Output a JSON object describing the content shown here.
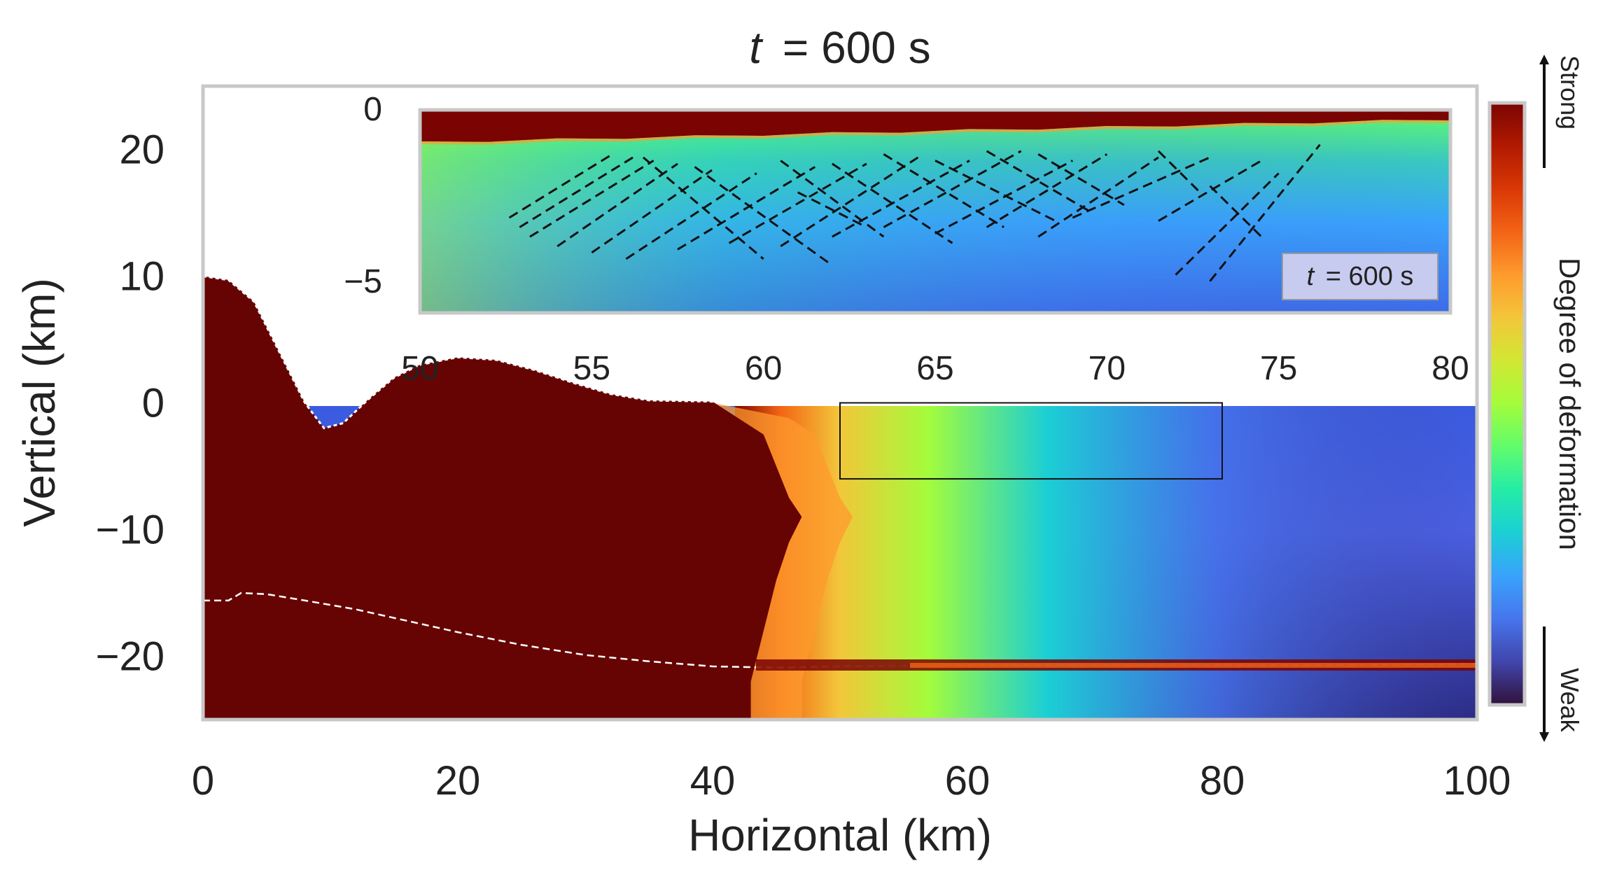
{
  "chart_data": [
    {
      "type": "heatmap",
      "title_prefix": "t",
      "title_value": "=  600 s",
      "xlabel": "Horizontal (km)",
      "ylabel": "Vertical (km)",
      "xlim": [
        0,
        100
      ],
      "ylim": [
        -25,
        25
      ],
      "x_ticks": [
        0,
        20,
        40,
        60,
        80,
        100
      ],
      "y_ticks": [
        20,
        10,
        0,
        -10,
        -20
      ],
      "grid": false,
      "surface_topography": [
        [
          0,
          10
        ],
        [
          2,
          9.7
        ],
        [
          4,
          8
        ],
        [
          6,
          4
        ],
        [
          8,
          0
        ],
        [
          9.5,
          -2
        ],
        [
          11,
          -1.6
        ],
        [
          13,
          0.3
        ],
        [
          15,
          2
        ],
        [
          17,
          3
        ],
        [
          20,
          3.6
        ],
        [
          23,
          3.4
        ],
        [
          26,
          2.6
        ],
        [
          29,
          1.6
        ],
        [
          32,
          0.7
        ],
        [
          35,
          0.2
        ],
        [
          40,
          0.1
        ],
        [
          45,
          0
        ],
        [
          50,
          0
        ],
        [
          60,
          0
        ],
        [
          70,
          0
        ],
        [
          80,
          0
        ],
        [
          90,
          0
        ],
        [
          100,
          0
        ]
      ],
      "dashed_boundary": [
        [
          0,
          -15.6
        ],
        [
          2,
          -15.6
        ],
        [
          3,
          -15.0
        ],
        [
          5,
          -15.1
        ],
        [
          8,
          -15.6
        ],
        [
          12,
          -16.3
        ],
        [
          16,
          -17.2
        ],
        [
          20,
          -18.1
        ],
        [
          25,
          -19.1
        ],
        [
          30,
          -19.9
        ],
        [
          35,
          -20.4
        ],
        [
          40,
          -20.8
        ],
        [
          45,
          -20.9
        ],
        [
          50,
          -20.8
        ],
        [
          60,
          -20.7
        ],
        [
          70,
          -20.7
        ],
        [
          80,
          -20.7
        ],
        [
          90,
          -20.7
        ],
        [
          100,
          -20.6
        ]
      ],
      "strong_deformation_front": [
        [
          42,
          25
        ],
        [
          42,
          -1.2
        ],
        [
          44,
          -2.5
        ],
        [
          45,
          -5
        ],
        [
          46,
          -7.5
        ],
        [
          47,
          -9
        ],
        [
          46,
          -11
        ],
        [
          45,
          -14
        ],
        [
          44,
          -18
        ],
        [
          43,
          -22
        ],
        [
          43,
          -25
        ]
      ],
      "zoom_box": {
        "xlim": [
          50,
          80
        ],
        "ylim": [
          -6,
          0
        ]
      }
    },
    {
      "type": "heatmap",
      "role": "inset",
      "xlim": [
        50,
        80
      ],
      "ylim": [
        -6,
        0
      ],
      "x_ticks": [
        50,
        55,
        60,
        65,
        70,
        75,
        80
      ],
      "y_ticks": [
        0,
        -5
      ],
      "label_prefix": "t",
      "label_value": "=  600 s",
      "dashed_fault_lines": [
        [
          [
            52.6,
            -3.0
          ],
          [
            55.6,
            -1.0
          ]
        ],
        [
          [
            52.9,
            -3.3
          ],
          [
            56.2,
            -1.1
          ]
        ],
        [
          [
            53.2,
            -3.6
          ],
          [
            56.8,
            -1.2
          ]
        ],
        [
          [
            54.0,
            -3.9
          ],
          [
            57.5,
            -1.3
          ]
        ],
        [
          [
            55.0,
            -4.1
          ],
          [
            58.5,
            -1.5
          ]
        ],
        [
          [
            56.0,
            -4.3
          ],
          [
            59.8,
            -1.6
          ]
        ],
        [
          [
            57.5,
            -4.0
          ],
          [
            61.5,
            -1.4
          ]
        ],
        [
          [
            59.0,
            -3.8
          ],
          [
            63.0,
            -1.3
          ]
        ],
        [
          [
            60.5,
            -3.9
          ],
          [
            64.5,
            -1.1
          ]
        ],
        [
          [
            62.0,
            -3.6
          ],
          [
            66.0,
            -1.2
          ]
        ],
        [
          [
            63.5,
            -3.3
          ],
          [
            67.5,
            -0.9
          ]
        ],
        [
          [
            65.0,
            -3.5
          ],
          [
            69.0,
            -1.2
          ]
        ],
        [
          [
            66.5,
            -3.3
          ],
          [
            70.0,
            -1.0
          ]
        ],
        [
          [
            68.0,
            -3.6
          ],
          [
            71.5,
            -1.1
          ]
        ],
        [
          [
            69.0,
            -3.0
          ],
          [
            73.0,
            -1.1
          ]
        ],
        [
          [
            71.5,
            -3.1
          ],
          [
            74.5,
            -1.2
          ]
        ],
        [
          [
            72.0,
            -4.8
          ],
          [
            75.0,
            -1.6
          ]
        ],
        [
          [
            73.0,
            -5.0
          ],
          [
            76.2,
            -0.7
          ]
        ],
        [
          [
            56.5,
            -1.1
          ],
          [
            60.0,
            -4.3
          ]
        ],
        [
          [
            58.0,
            -1.4
          ],
          [
            62.0,
            -4.5
          ]
        ],
        [
          [
            60.5,
            -1.2
          ],
          [
            63.5,
            -3.6
          ]
        ],
        [
          [
            62.0,
            -1.3
          ],
          [
            65.5,
            -3.8
          ]
        ],
        [
          [
            63.5,
            -1.0
          ],
          [
            67.0,
            -3.3
          ]
        ],
        [
          [
            65.0,
            -1.2
          ],
          [
            68.5,
            -3.1
          ]
        ],
        [
          [
            66.5,
            -0.9
          ],
          [
            69.5,
            -2.8
          ]
        ],
        [
          [
            68.0,
            -1.0
          ],
          [
            70.5,
            -2.6
          ]
        ],
        [
          [
            71.5,
            -0.9
          ],
          [
            72.8,
            -2.3
          ]
        ],
        [
          [
            73.0,
            -2.0
          ],
          [
            74.5,
            -3.6
          ]
        ],
        [
          [
            61.0,
            -2.2
          ],
          [
            63.0,
            -3.3
          ]
        ]
      ]
    },
    {
      "type": "colorbar",
      "label": "Degree of deformation",
      "top_label": "Strong",
      "bottom_label": "Weak",
      "colormap": "turbo",
      "colors": [
        "#30123b",
        "#4145ab",
        "#4675ed",
        "#39a2fc",
        "#1bcfd4",
        "#24eca6",
        "#61fc6c",
        "#a4fc3b",
        "#d1e834",
        "#f3c63a",
        "#fe9b2d",
        "#f36315",
        "#d93806",
        "#b11901",
        "#7a0402"
      ]
    }
  ]
}
